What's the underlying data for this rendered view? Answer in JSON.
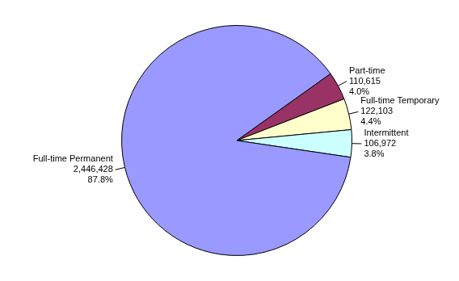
{
  "chart_data": {
    "type": "pie",
    "categories": [
      "Part-time",
      "Full-time Temporary",
      "Intermittent",
      "Full-time Permanent"
    ],
    "values": [
      110615,
      122103,
      106972,
      2446428
    ],
    "value_labels": [
      "110,615",
      "122,103",
      "106,972",
      "2,446,428"
    ],
    "percent_labels": [
      "4.0%",
      "4.4%",
      "3.8%",
      "87.8%"
    ],
    "colors": [
      "#993366",
      "#ffffcc",
      "#ccffff",
      "#9999ff"
    ],
    "data_labels": true
  }
}
